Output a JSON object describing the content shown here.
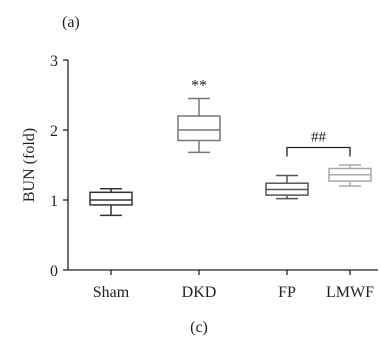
{
  "figure": {
    "panel_label_top": "(a)",
    "caption_bottom": "(c)"
  },
  "chart_data": {
    "type": "box",
    "categories": [
      "Sham",
      "DKD",
      "FP",
      "LMWF"
    ],
    "ylabel": "BUN (fold)",
    "xlabel": "",
    "ylim": [
      0,
      3
    ],
    "yticks": [
      0,
      1,
      2,
      3
    ],
    "grid": false,
    "boxes": [
      {
        "category": "Sham",
        "min": 0.78,
        "q1": 0.93,
        "median": 1.0,
        "q3": 1.11,
        "max": 1.16,
        "color": "#333333"
      },
      {
        "category": "DKD",
        "min": 1.68,
        "q1": 1.85,
        "median": 2.0,
        "q3": 2.2,
        "max": 2.45,
        "color": "#777777",
        "annotation": "**"
      },
      {
        "category": "FP",
        "min": 1.02,
        "q1": 1.07,
        "median": 1.15,
        "q3": 1.24,
        "max": 1.35,
        "color": "#555555"
      },
      {
        "category": "LMWF",
        "min": 1.2,
        "q1": 1.27,
        "median": 1.36,
        "q3": 1.45,
        "max": 1.5,
        "color": "#aaaaaa"
      }
    ],
    "comparisons": [
      {
        "from": "FP",
        "to": "LMWF",
        "label": "##"
      }
    ]
  }
}
